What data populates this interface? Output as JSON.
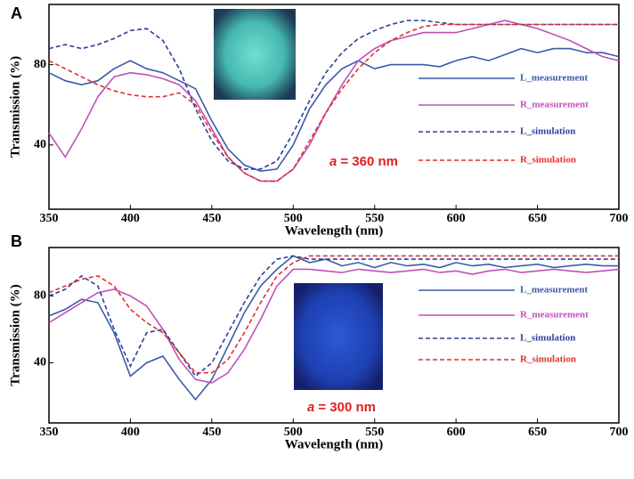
{
  "chart_data": [
    {
      "type": "line",
      "panel": "A",
      "xlabel": "Wavelength (nm)",
      "ylabel": "Transmission (%)",
      "annotation_var": "a",
      "annotation": "= 360 nm",
      "x": [
        350,
        360,
        370,
        380,
        390,
        400,
        410,
        420,
        430,
        440,
        450,
        460,
        470,
        480,
        490,
        500,
        510,
        520,
        530,
        540,
        550,
        560,
        570,
        580,
        590,
        600,
        610,
        620,
        630,
        640,
        650,
        660,
        670,
        680,
        690,
        700
      ],
      "xlim": [
        350,
        700
      ],
      "xticks": [
        350,
        400,
        450,
        500,
        550,
        600,
        650,
        700
      ],
      "ylim": [
        8,
        110
      ],
      "yticks": [
        40,
        80
      ],
      "series": [
        {
          "name": "L_measurement",
          "color": "#3a5ba8",
          "style": "solid",
          "values": [
            76,
            72,
            70,
            72,
            78,
            82,
            78,
            76,
            72,
            68,
            52,
            38,
            30,
            27,
            28,
            40,
            58,
            70,
            78,
            82,
            78,
            80,
            80,
            80,
            79,
            82,
            84,
            82,
            85,
            88,
            86,
            88,
            88,
            86,
            86,
            84
          ]
        },
        {
          "name": "R_measurement",
          "color": "#c050b8",
          "style": "solid",
          "values": [
            46,
            34,
            48,
            64,
            74,
            76,
            75,
            73,
            70,
            62,
            48,
            34,
            26,
            22,
            22,
            28,
            40,
            56,
            70,
            82,
            88,
            92,
            94,
            96,
            96,
            96,
            98,
            100,
            102,
            100,
            98,
            95,
            92,
            88,
            84,
            82
          ]
        },
        {
          "name": "L_simulation",
          "color": "#2c3e9a",
          "style": "dashed",
          "values": [
            88,
            90,
            88,
            90,
            93,
            97,
            98,
            92,
            78,
            58,
            42,
            32,
            28,
            28,
            32,
            46,
            62,
            76,
            86,
            93,
            97,
            100,
            102,
            102,
            101,
            100,
            100,
            100,
            100,
            100,
            100,
            100,
            100,
            100,
            100,
            100
          ]
        },
        {
          "name": "R_simulation",
          "color": "#e03030",
          "style": "dashed",
          "values": [
            82,
            78,
            74,
            70,
            67,
            65,
            64,
            64,
            66,
            60,
            46,
            34,
            26,
            22,
            22,
            28,
            42,
            56,
            68,
            78,
            86,
            92,
            96,
            99,
            100,
            100,
            100,
            100,
            100,
            100,
            100,
            100,
            100,
            100,
            100,
            100
          ]
        }
      ]
    },
    {
      "type": "line",
      "panel": "B",
      "xlabel": "Wavelength (nm)",
      "ylabel": "Transmission (%)",
      "annotation_var": "a",
      "annotation": "= 300 nm",
      "x": [
        350,
        360,
        370,
        380,
        390,
        400,
        410,
        420,
        430,
        440,
        450,
        460,
        470,
        480,
        490,
        500,
        510,
        520,
        530,
        540,
        550,
        560,
        570,
        580,
        590,
        600,
        610,
        620,
        630,
        640,
        650,
        660,
        670,
        680,
        690,
        700
      ],
      "xlim": [
        350,
        700
      ],
      "xticks": [
        350,
        400,
        450,
        500,
        550,
        600,
        650,
        700
      ],
      "ylim": [
        4,
        109
      ],
      "yticks": [
        40,
        80
      ],
      "series": [
        {
          "name": "L_measurement",
          "color": "#3a5ba8",
          "style": "solid",
          "values": [
            68,
            72,
            78,
            76,
            58,
            32,
            40,
            44,
            30,
            18,
            30,
            50,
            70,
            86,
            96,
            104,
            100,
            102,
            98,
            100,
            97,
            100,
            98,
            99,
            97,
            100,
            98,
            99,
            97,
            98,
            99,
            97,
            98,
            99,
            98,
            98
          ]
        },
        {
          "name": "R_measurement",
          "color": "#c050b8",
          "style": "solid",
          "values": [
            64,
            70,
            76,
            82,
            84,
            80,
            74,
            60,
            42,
            30,
            28,
            34,
            48,
            66,
            86,
            96,
            96,
            95,
            94,
            96,
            95,
            94,
            95,
            96,
            94,
            95,
            93,
            95,
            96,
            94,
            95,
            96,
            95,
            94,
            95,
            96
          ]
        },
        {
          "name": "L_simulation",
          "color": "#2c3e9a",
          "style": "dashed",
          "values": [
            80,
            84,
            92,
            86,
            60,
            38,
            58,
            60,
            46,
            32,
            40,
            58,
            76,
            92,
            102,
            104,
            102,
            102,
            102,
            102,
            102,
            102,
            102,
            102,
            102,
            102,
            102,
            102,
            102,
            102,
            102,
            102,
            102,
            102,
            102,
            102
          ]
        },
        {
          "name": "R_simulation",
          "color": "#e03030",
          "style": "dashed",
          "values": [
            82,
            86,
            90,
            92,
            86,
            72,
            64,
            58,
            46,
            34,
            34,
            42,
            58,
            76,
            92,
            100,
            104,
            104,
            104,
            104,
            104,
            104,
            104,
            104,
            104,
            104,
            104,
            104,
            104,
            104,
            104,
            104,
            104,
            104,
            104,
            104
          ]
        }
      ]
    }
  ]
}
